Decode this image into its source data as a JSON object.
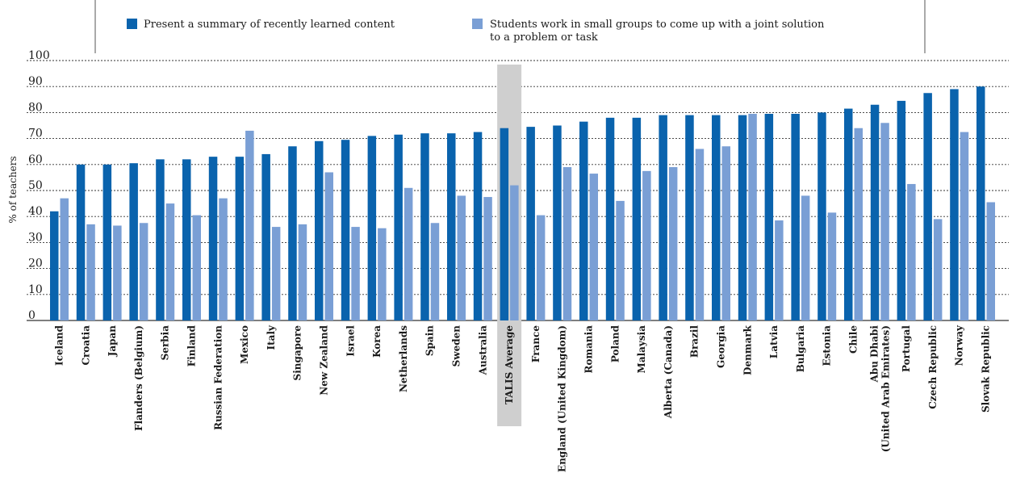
{
  "chart_data": {
    "type": "bar",
    "ylabel": "% of teachers",
    "ylim": [
      0,
      100
    ],
    "yticks": [
      0,
      10,
      20,
      30,
      40,
      50,
      60,
      70,
      80,
      90,
      100
    ],
    "grid": true,
    "legend_position": "top",
    "highlight_category": "TALIS Average",
    "categories": [
      "Iceland",
      "Croatia",
      "Japan",
      "Flanders (Belgium)",
      "Serbia",
      "Finland",
      "Russian Federation",
      "Mexico",
      "Italy",
      "Singapore",
      "New Zealand",
      "Israel",
      "Korea",
      "Netherlands",
      "Spain",
      "Sweden",
      "Australia",
      "TALIS Average",
      "France",
      "England (United Kingdom)",
      "Romania",
      "Poland",
      "Malaysia",
      "Alberta (Canada)",
      "Brazil",
      "Georgia",
      "Denmark",
      "Latvia",
      "Bulgaria",
      "Estonia",
      "Chile",
      "Abu Dhabi\n(United Arab Emirates)",
      "Portugal",
      "Czech Republic",
      "Norway",
      "Slovak Republic"
    ],
    "series": [
      {
        "name": "Present a summary of recently learned content",
        "color": "#0a63ad",
        "values": [
          42,
          60,
          60,
          60.5,
          62,
          62,
          63,
          63,
          64,
          67,
          69,
          69.5,
          71,
          71.5,
          72,
          72,
          72.5,
          74,
          74.5,
          75,
          76.5,
          78,
          78,
          79,
          79,
          79,
          79,
          79.5,
          79.5,
          80,
          81.5,
          83,
          84.5,
          87.5,
          89,
          90
        ]
      },
      {
        "name": "Students work in small groups to come up with a joint solution\nto a problem or task",
        "color": "#7a9fd5",
        "values": [
          47,
          37,
          36.5,
          37.5,
          45,
          40.5,
          47,
          73,
          36,
          37,
          57,
          36,
          35.5,
          51,
          37.5,
          48,
          47.5,
          52,
          40.5,
          59,
          56.5,
          46,
          57.5,
          59,
          66,
          67,
          79.5,
          38.5,
          48,
          41.5,
          74,
          76,
          52.5,
          39,
          72.5,
          45.5
        ]
      }
    ]
  }
}
